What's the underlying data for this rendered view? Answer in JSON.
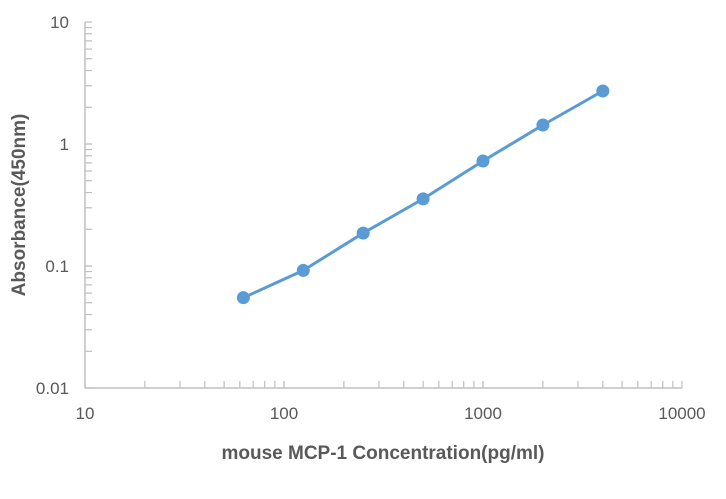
{
  "chart_data": {
    "type": "line",
    "title": "",
    "xlabel": "mouse MCP-1 Concentration(pg/ml)",
    "ylabel": "Absorbance(450nm)",
    "xscale": "log",
    "yscale": "log",
    "xlim": [
      10,
      10000
    ],
    "ylim": [
      0.01,
      10
    ],
    "x_ticks": [
      "10",
      "100",
      "1000",
      "10000"
    ],
    "y_ticks": [
      "0.01",
      "0.1",
      "1",
      "10"
    ],
    "grid": false,
    "legend": "none",
    "series_color": "#5b9bd5",
    "axis_color": "#bfbfbf",
    "markers": true,
    "x": [
      62.5,
      125,
      250,
      500,
      1000,
      2000,
      4000
    ],
    "series": [
      {
        "values": [
          0.055,
          0.092,
          0.186,
          0.355,
          0.725,
          1.43,
          2.72
        ]
      }
    ]
  }
}
